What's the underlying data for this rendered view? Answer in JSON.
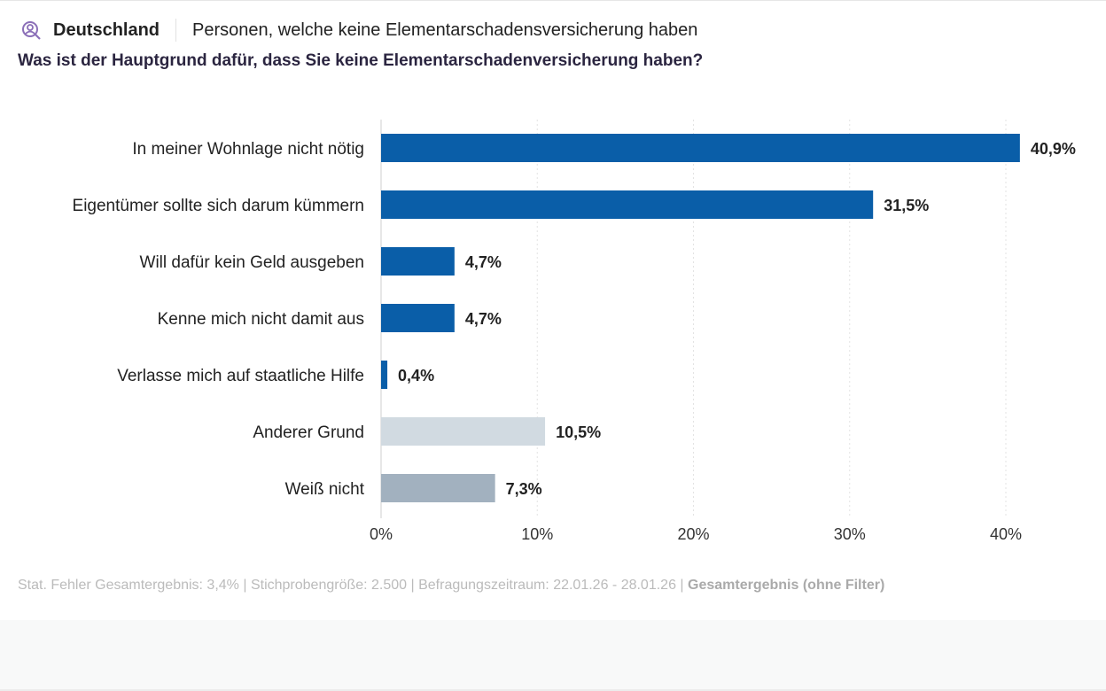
{
  "header": {
    "region": "Deutschland",
    "population": "Personen, welche keine Elementarschadensversicherung haben",
    "icon": "user-search-icon",
    "icon_color": "#8b6fb8"
  },
  "question": "Was ist der Hauptgrund dafür, dass Sie keine Elementarschadenversicherung haben?",
  "chart_data": {
    "type": "bar",
    "orientation": "horizontal",
    "categories": [
      "In meiner Wohnlage nicht nötig",
      "Eigentümer sollte sich darum kümmern",
      "Will dafür kein Geld ausgeben",
      "Kenne mich nicht damit aus",
      "Verlasse mich auf staatliche Hilfe",
      "Anderer Grund",
      "Weiß nicht"
    ],
    "values": [
      40.9,
      31.5,
      4.7,
      4.7,
      0.4,
      10.5,
      7.3
    ],
    "data_labels": [
      "40,9%",
      "31,5%",
      "4,7%",
      "4,7%",
      "0,4%",
      "10,5%",
      "7,3%"
    ],
    "colors": [
      "#0a5ea8",
      "#0a5ea8",
      "#0a5ea8",
      "#0a5ea8",
      "#0a5ea8",
      "#d1dae1",
      "#a2b1bf"
    ],
    "xlim": [
      0,
      40
    ],
    "xticks": [
      0,
      10,
      20,
      30,
      40
    ],
    "xtick_labels": [
      "0%",
      "10%",
      "20%",
      "30%",
      "40%"
    ],
    "grid": true,
    "legend": "none"
  },
  "footer": {
    "text": "Stat. Fehler Gesamtergebnis: 3,4% | Stichprobengröße: 2.500 | Befragungszeitraum: 22.01.26 - 28.01.26 | ",
    "filter": "Gesamtergebnis (ohne Filter)"
  }
}
